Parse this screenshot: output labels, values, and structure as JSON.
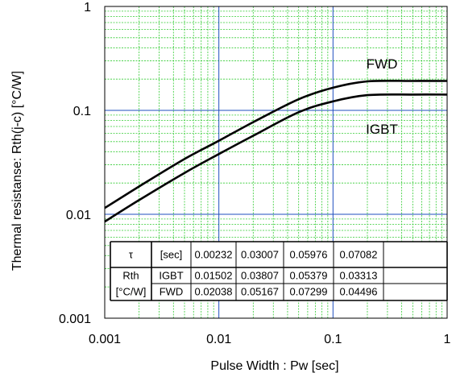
{
  "chart_data": {
    "type": "line",
    "xscale": "log",
    "yscale": "log",
    "xlim": [
      0.001,
      1
    ],
    "ylim": [
      0.001,
      1
    ],
    "xlabel": "Pulse Width : Pw [sec]",
    "ylabel": "Thermal resistanse: Rth(j-c) [°C/W]",
    "xticks": [
      "0.001",
      "0.01",
      "0.1",
      "1"
    ],
    "yticks": [
      "0.001",
      "0.01",
      "0.1",
      "1"
    ],
    "grid": true,
    "colors": {
      "major_grid": "#1f4fbf",
      "minor_grid": "#33cc33",
      "curve": "#000000"
    },
    "series": [
      {
        "name": "FWD",
        "x": [
          0.001,
          0.002,
          0.005,
          0.01,
          0.02,
          0.05,
          0.1,
          0.2,
          0.5,
          1
        ],
        "y": [
          0.0115,
          0.0185,
          0.034,
          0.051,
          0.077,
          0.128,
          0.165,
          0.19,
          0.192,
          0.192
        ]
      },
      {
        "name": "IGBT",
        "x": [
          0.001,
          0.002,
          0.005,
          0.01,
          0.02,
          0.05,
          0.1,
          0.2,
          0.5,
          1
        ],
        "y": [
          0.0085,
          0.0137,
          0.025,
          0.038,
          0.057,
          0.096,
          0.122,
          0.14,
          0.142,
          0.142
        ]
      }
    ],
    "table": {
      "rows": [
        [
          "τ",
          "[sec]",
          "0.00232",
          "0.03007",
          "0.05976",
          "0.07082"
        ],
        [
          "Rth",
          "IGBT",
          "0.01502",
          "0.03807",
          "0.05379",
          "0.03313"
        ],
        [
          "[°C/W]",
          "FWD",
          "0.02038",
          "0.05167",
          "0.07299",
          "0.04496"
        ]
      ]
    }
  }
}
